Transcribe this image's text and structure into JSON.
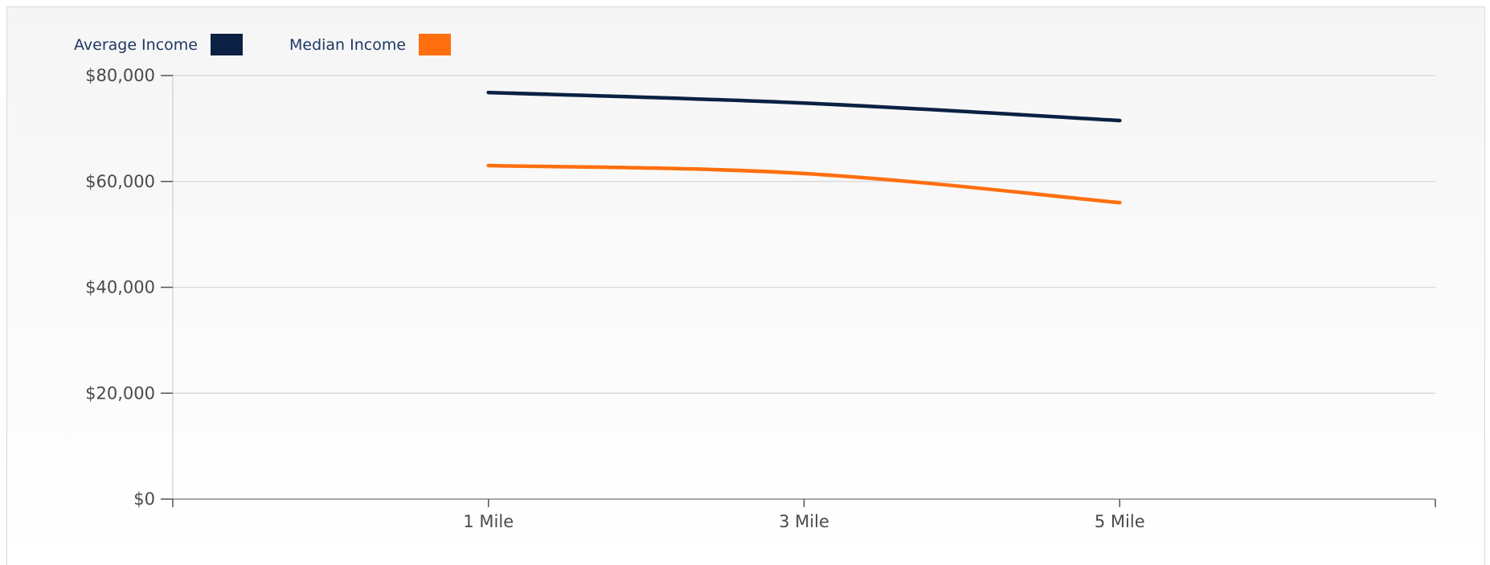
{
  "chart_data": {
    "type": "line",
    "categories": [
      "1 Mile",
      "3 Mile",
      "5 Mile"
    ],
    "series": [
      {
        "name": "Average Income",
        "color": "#0b2143",
        "values": [
          76800,
          74800,
          71500
        ]
      },
      {
        "name": "Median Income",
        "color": "#ff6f0f",
        "values": [
          63000,
          61500,
          56000
        ]
      }
    ],
    "yticks": [
      0,
      20000,
      40000,
      60000,
      80000
    ],
    "ytick_labels": [
      "$0",
      "$20,000",
      "$40,000",
      "$60,000",
      "$80,000"
    ],
    "ylim": [
      0,
      80000
    ],
    "grid": true,
    "legend": "top-left",
    "xlabel": "",
    "ylabel": ""
  }
}
